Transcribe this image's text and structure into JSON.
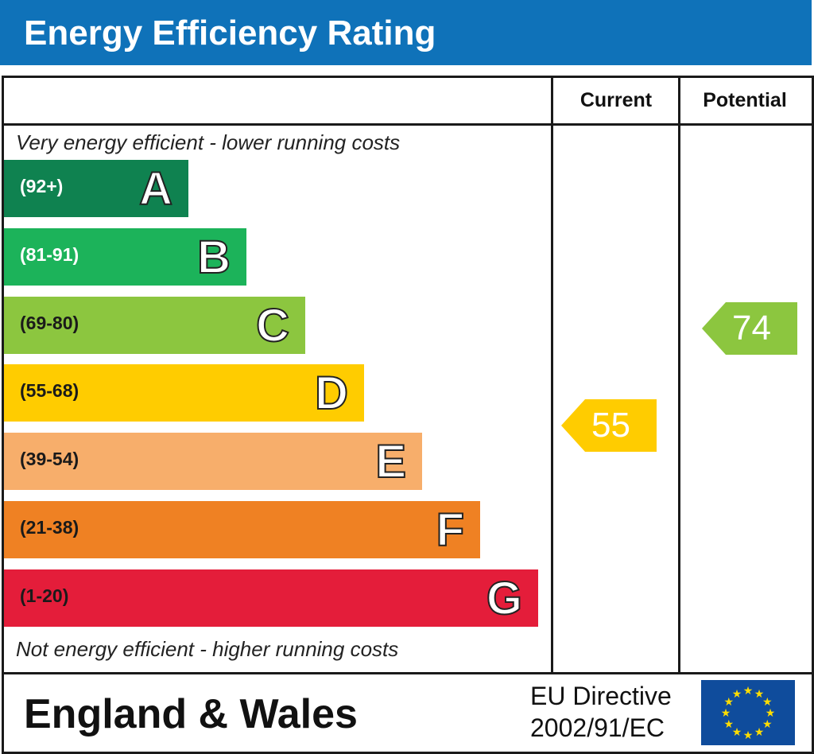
{
  "title": "Energy Efficiency Rating",
  "columns": {
    "current": "Current",
    "potential": "Potential"
  },
  "top_caption": "Very energy efficient - lower running costs",
  "bottom_caption": "Not energy efficient - higher running costs",
  "footer": {
    "country": "England & Wales",
    "directive_line1": "EU Directive",
    "directive_line2": "2002/91/EC"
  },
  "icons": {
    "eu_flag": "eu-flag-icon"
  },
  "chart_data": {
    "type": "bar",
    "categories": [
      "A",
      "B",
      "C",
      "D",
      "E",
      "F",
      "G"
    ],
    "ranges": [
      "(92+)",
      "(81-91)",
      "(69-80)",
      "(55-68)",
      "(39-54)",
      "(21-38)",
      "(1-20)"
    ],
    "colors": [
      "#0f8250",
      "#1cb35a",
      "#8cc63f",
      "#ffcc00",
      "#f7ae6b",
      "#ef8123",
      "#e41d3a"
    ],
    "current": {
      "value": 55,
      "band": "D",
      "color": "#ffcc00"
    },
    "potential": {
      "value": 74,
      "band": "C",
      "color": "#8cc63f"
    }
  }
}
